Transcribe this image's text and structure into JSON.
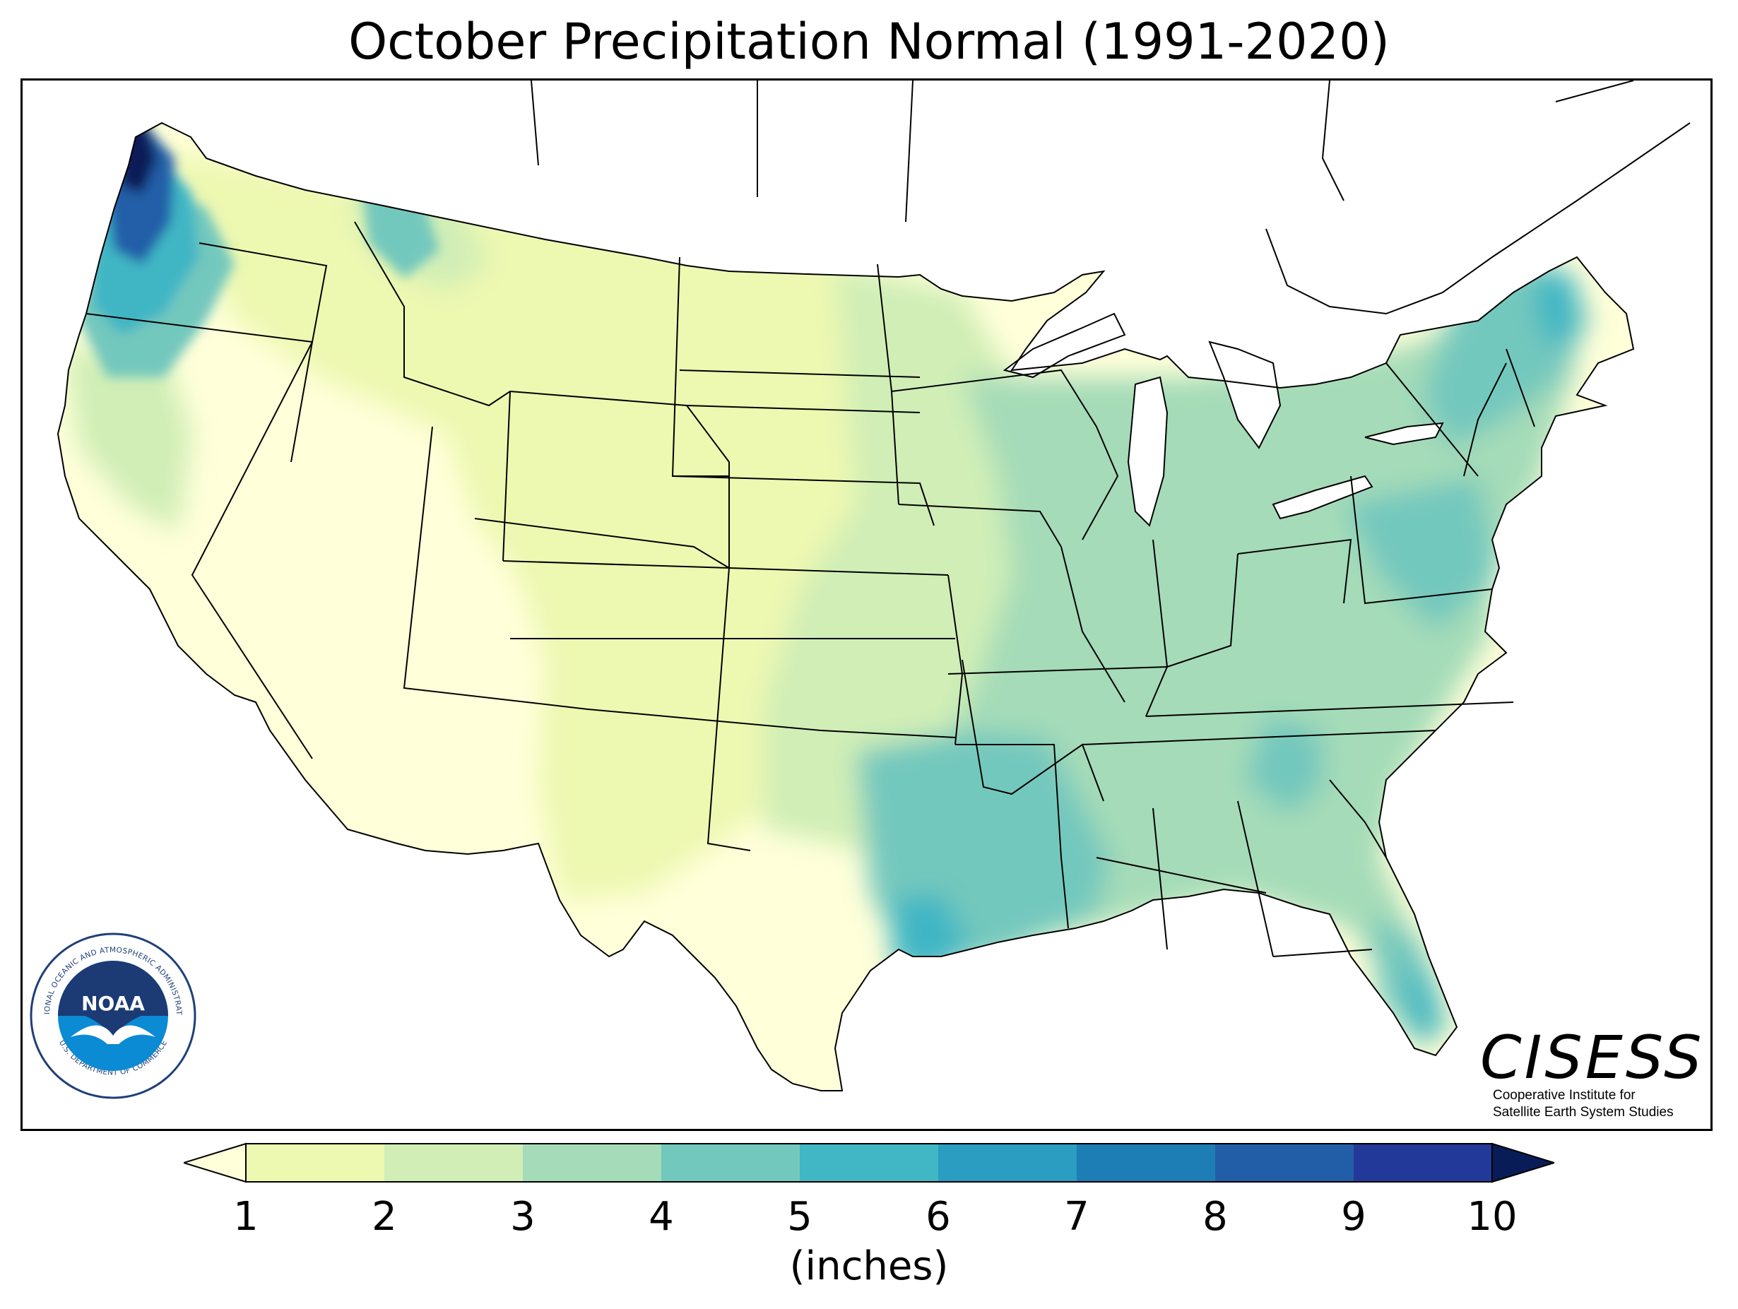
{
  "title": "October Precipitation Normal (1991-2020)",
  "map": {
    "region": "Contiguous United States",
    "colors": {
      "ocean": "#ffffff",
      "lakes": "#ffffff",
      "outside": "#ffffff",
      "borders": "#000000"
    }
  },
  "colorbar": {
    "units": "(inches)",
    "ticks": [
      "1",
      "2",
      "3",
      "4",
      "5",
      "6",
      "7",
      "8",
      "9",
      "10"
    ],
    "under_color": "#ffffd9",
    "over_color": "#081d58",
    "bins": [
      {
        "min": 1,
        "max": 2,
        "color": "#edf8b1"
      },
      {
        "min": 2,
        "max": 3,
        "color": "#d0eeb6"
      },
      {
        "min": 3,
        "max": 4,
        "color": "#a5dbb8"
      },
      {
        "min": 4,
        "max": 5,
        "color": "#73c8bd"
      },
      {
        "min": 5,
        "max": 6,
        "color": "#41b6c4"
      },
      {
        "min": 6,
        "max": 7,
        "color": "#2a9dc1"
      },
      {
        "min": 7,
        "max": 8,
        "color": "#1d7eb6"
      },
      {
        "min": 8,
        "max": 9,
        "color": "#225ea8"
      },
      {
        "min": 9,
        "max": 10,
        "color": "#23399a"
      }
    ]
  },
  "logos": {
    "noaa": {
      "ring_text": "NATIONAL OCEANIC AND ATMOSPHERIC ADMINISTRATION",
      "bottom_text": "U.S. DEPARTMENT OF COMMERCE",
      "center_text": "NOAA"
    },
    "cisess": {
      "wordmark": "CISESS",
      "line1": "Cooperative Institute for",
      "line2": "Satellite Earth System Studies"
    }
  }
}
